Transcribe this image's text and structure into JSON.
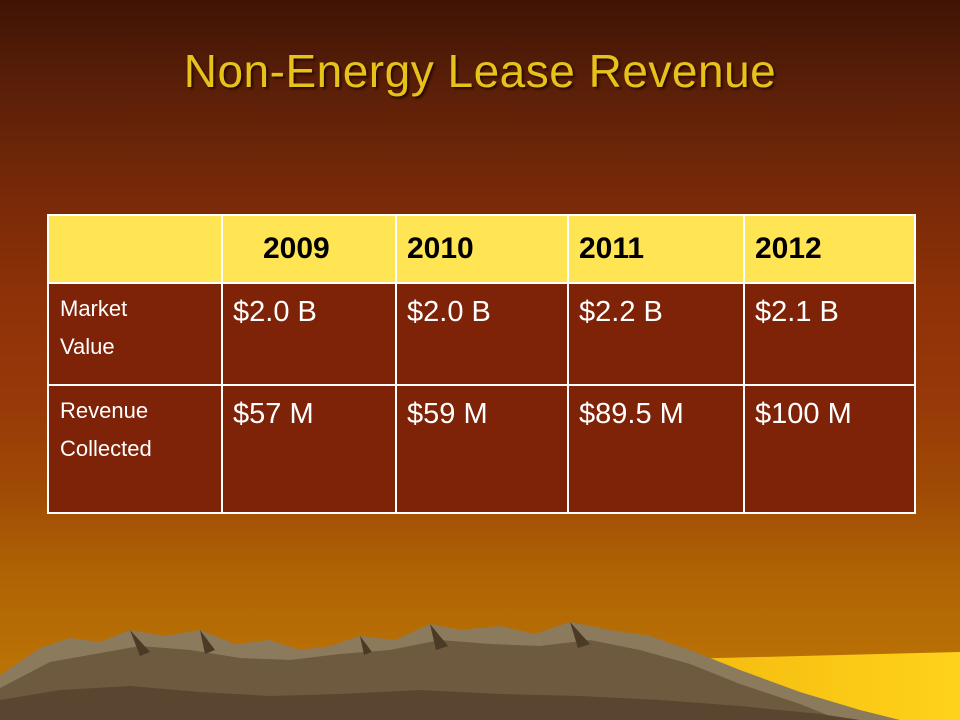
{
  "slide": {
    "title": "Non-Energy Lease Revenue"
  },
  "table": {
    "corner": "",
    "years": [
      "2009",
      "2010",
      "2011",
      "2012"
    ],
    "rows": [
      {
        "label_line1": "Market",
        "label_line2": "Value",
        "values": [
          "$2.0 B",
          "$2.0 B",
          "$2.2 B",
          "$2.1 B"
        ]
      },
      {
        "label_line1": "Revenue",
        "label_line2": "Collected",
        "values": [
          "$57 M",
          "$59 M",
          "$89.5 M",
          "$100 M"
        ]
      }
    ]
  },
  "colors": {
    "title": "#e6c21a",
    "header_fill": "#ffe554",
    "body_fill": "#7e2208",
    "border": "#ffffff",
    "background_top": "#3f1405",
    "background_bottom": "#c07a05",
    "horizon_glow": "#ffd21a"
  },
  "decoration": {
    "mountains": "mountain-range-graphic"
  }
}
